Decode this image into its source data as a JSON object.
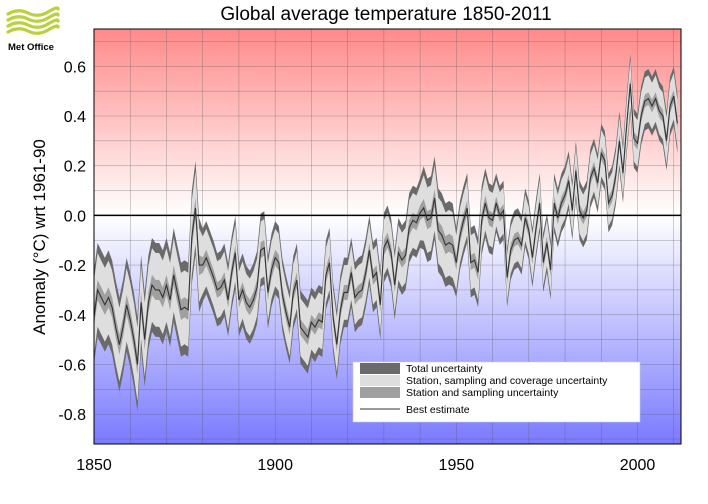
{
  "logo": {
    "text": "Met Office",
    "color": "#b8d23a"
  },
  "chart_data": {
    "type": "line",
    "title": "Global average temperature 1850-2011",
    "xlabel": "",
    "ylabel": "Anomaly (°C) wrt 1961-90",
    "xlim": [
      1850,
      2012
    ],
    "ylim": [
      -0.92,
      0.75
    ],
    "xticks": [
      1850,
      1900,
      1950,
      2000
    ],
    "yticks": [
      -0.8,
      -0.6,
      -0.4,
      -0.2,
      0.0,
      0.2,
      0.4,
      0.6
    ],
    "ytick_labels": [
      "-0.8",
      "-0.6",
      "-0.4",
      "-0.2",
      "0.0",
      "0.2",
      "0.4",
      "0.6"
    ],
    "grid": true,
    "background": {
      "top_color": "#ff8a8a",
      "zero_color": "#ffffff",
      "bottom_color": "#7a7aff"
    },
    "legend": {
      "position": "bottom-right",
      "entries": [
        {
          "label": "Total uncertainty",
          "color": "#6a6a6a",
          "style": "band"
        },
        {
          "label": "Station, sampling and coverage uncertainty",
          "color": "#dedede",
          "style": "band"
        },
        {
          "label": "Station and sampling uncertainty",
          "color": "#a0a0a0",
          "style": "band"
        },
        {
          "label": "Best estimate",
          "color": "#333333",
          "style": "line"
        }
      ]
    },
    "series": [
      {
        "years": [
          1850,
          1851,
          1852,
          1853,
          1854,
          1855,
          1856,
          1857,
          1858,
          1859,
          1860,
          1861,
          1862,
          1863,
          1864,
          1865,
          1866,
          1867,
          1868,
          1869,
          1870,
          1871,
          1872,
          1873,
          1874,
          1875,
          1876,
          1877,
          1878,
          1879,
          1880,
          1881,
          1882,
          1883,
          1884,
          1885,
          1886,
          1887,
          1888,
          1889,
          1890,
          1891,
          1892,
          1893,
          1894,
          1895,
          1896,
          1897,
          1898,
          1899,
          1900,
          1901,
          1902,
          1903,
          1904,
          1905,
          1906,
          1907,
          1908,
          1909,
          1910,
          1911,
          1912,
          1913,
          1914,
          1915,
          1916,
          1917,
          1918,
          1919,
          1920,
          1921,
          1922,
          1923,
          1924,
          1925,
          1926,
          1927,
          1928,
          1929,
          1930,
          1931,
          1932,
          1933,
          1934,
          1935,
          1936,
          1937,
          1938,
          1939,
          1940,
          1941,
          1942,
          1943,
          1944,
          1945,
          1946,
          1947,
          1948,
          1949,
          1950,
          1951,
          1952,
          1953,
          1954,
          1955,
          1956,
          1957,
          1958,
          1959,
          1960,
          1961,
          1962,
          1963,
          1964,
          1965,
          1966,
          1967,
          1968,
          1969,
          1970,
          1971,
          1972,
          1973,
          1974,
          1975,
          1976,
          1977,
          1978,
          1979,
          1980,
          1981,
          1982,
          1983,
          1984,
          1985,
          1986,
          1987,
          1988,
          1989,
          1990,
          1991,
          1992,
          1993,
          1994,
          1995,
          1996,
          1997,
          1998,
          1999,
          2000,
          2001,
          2002,
          2003,
          2004,
          2005,
          2006,
          2007,
          2008,
          2009,
          2010,
          2011
        ],
        "best_estimate": [
          -0.41,
          -0.3,
          -0.33,
          -0.36,
          -0.33,
          -0.37,
          -0.45,
          -0.52,
          -0.45,
          -0.36,
          -0.42,
          -0.5,
          -0.6,
          -0.35,
          -0.5,
          -0.35,
          -0.28,
          -0.3,
          -0.3,
          -0.33,
          -0.28,
          -0.34,
          -0.24,
          -0.31,
          -0.38,
          -0.37,
          -0.38,
          -0.09,
          0.03,
          -0.2,
          -0.2,
          -0.17,
          -0.21,
          -0.25,
          -0.3,
          -0.29,
          -0.26,
          -0.34,
          -0.23,
          -0.15,
          -0.34,
          -0.3,
          -0.35,
          -0.37,
          -0.34,
          -0.29,
          -0.14,
          -0.13,
          -0.31,
          -0.22,
          -0.17,
          -0.19,
          -0.32,
          -0.39,
          -0.45,
          -0.31,
          -0.26,
          -0.45,
          -0.47,
          -0.49,
          -0.43,
          -0.45,
          -0.42,
          -0.43,
          -0.24,
          -0.19,
          -0.41,
          -0.52,
          -0.38,
          -0.31,
          -0.31,
          -0.23,
          -0.33,
          -0.31,
          -0.3,
          -0.23,
          -0.14,
          -0.25,
          -0.23,
          -0.36,
          -0.13,
          -0.1,
          -0.15,
          -0.28,
          -0.15,
          -0.18,
          -0.16,
          -0.05,
          -0.02,
          -0.03,
          0.01,
          0.03,
          -0.02,
          -0.01,
          0.07,
          -0.06,
          -0.08,
          -0.12,
          -0.11,
          -0.12,
          -0.19,
          -0.08,
          -0.02,
          0.03,
          -0.19,
          -0.18,
          -0.23,
          -0.02,
          0.05,
          -0.01,
          -0.02,
          0.05,
          0.0,
          0.02,
          -0.25,
          -0.14,
          -0.1,
          -0.09,
          -0.12,
          -0.01,
          -0.06,
          -0.17,
          -0.05,
          0.05,
          -0.19,
          -0.11,
          -0.22,
          0.05,
          -0.01,
          0.05,
          0.08,
          0.14,
          0.02,
          0.18,
          0.02,
          -0.01,
          0.02,
          0.15,
          0.19,
          0.13,
          0.25,
          0.22,
          0.05,
          0.08,
          0.16,
          0.3,
          0.17,
          0.36,
          0.53,
          0.31,
          0.29,
          0.4,
          0.46,
          0.47,
          0.44,
          0.47,
          0.42,
          0.4,
          0.3,
          0.44,
          0.48,
          0.37
        ],
        "band_half_widths": {
          "station_sampling": 0.03,
          "coverage": 0.11,
          "total": 0.14
        }
      }
    ]
  }
}
